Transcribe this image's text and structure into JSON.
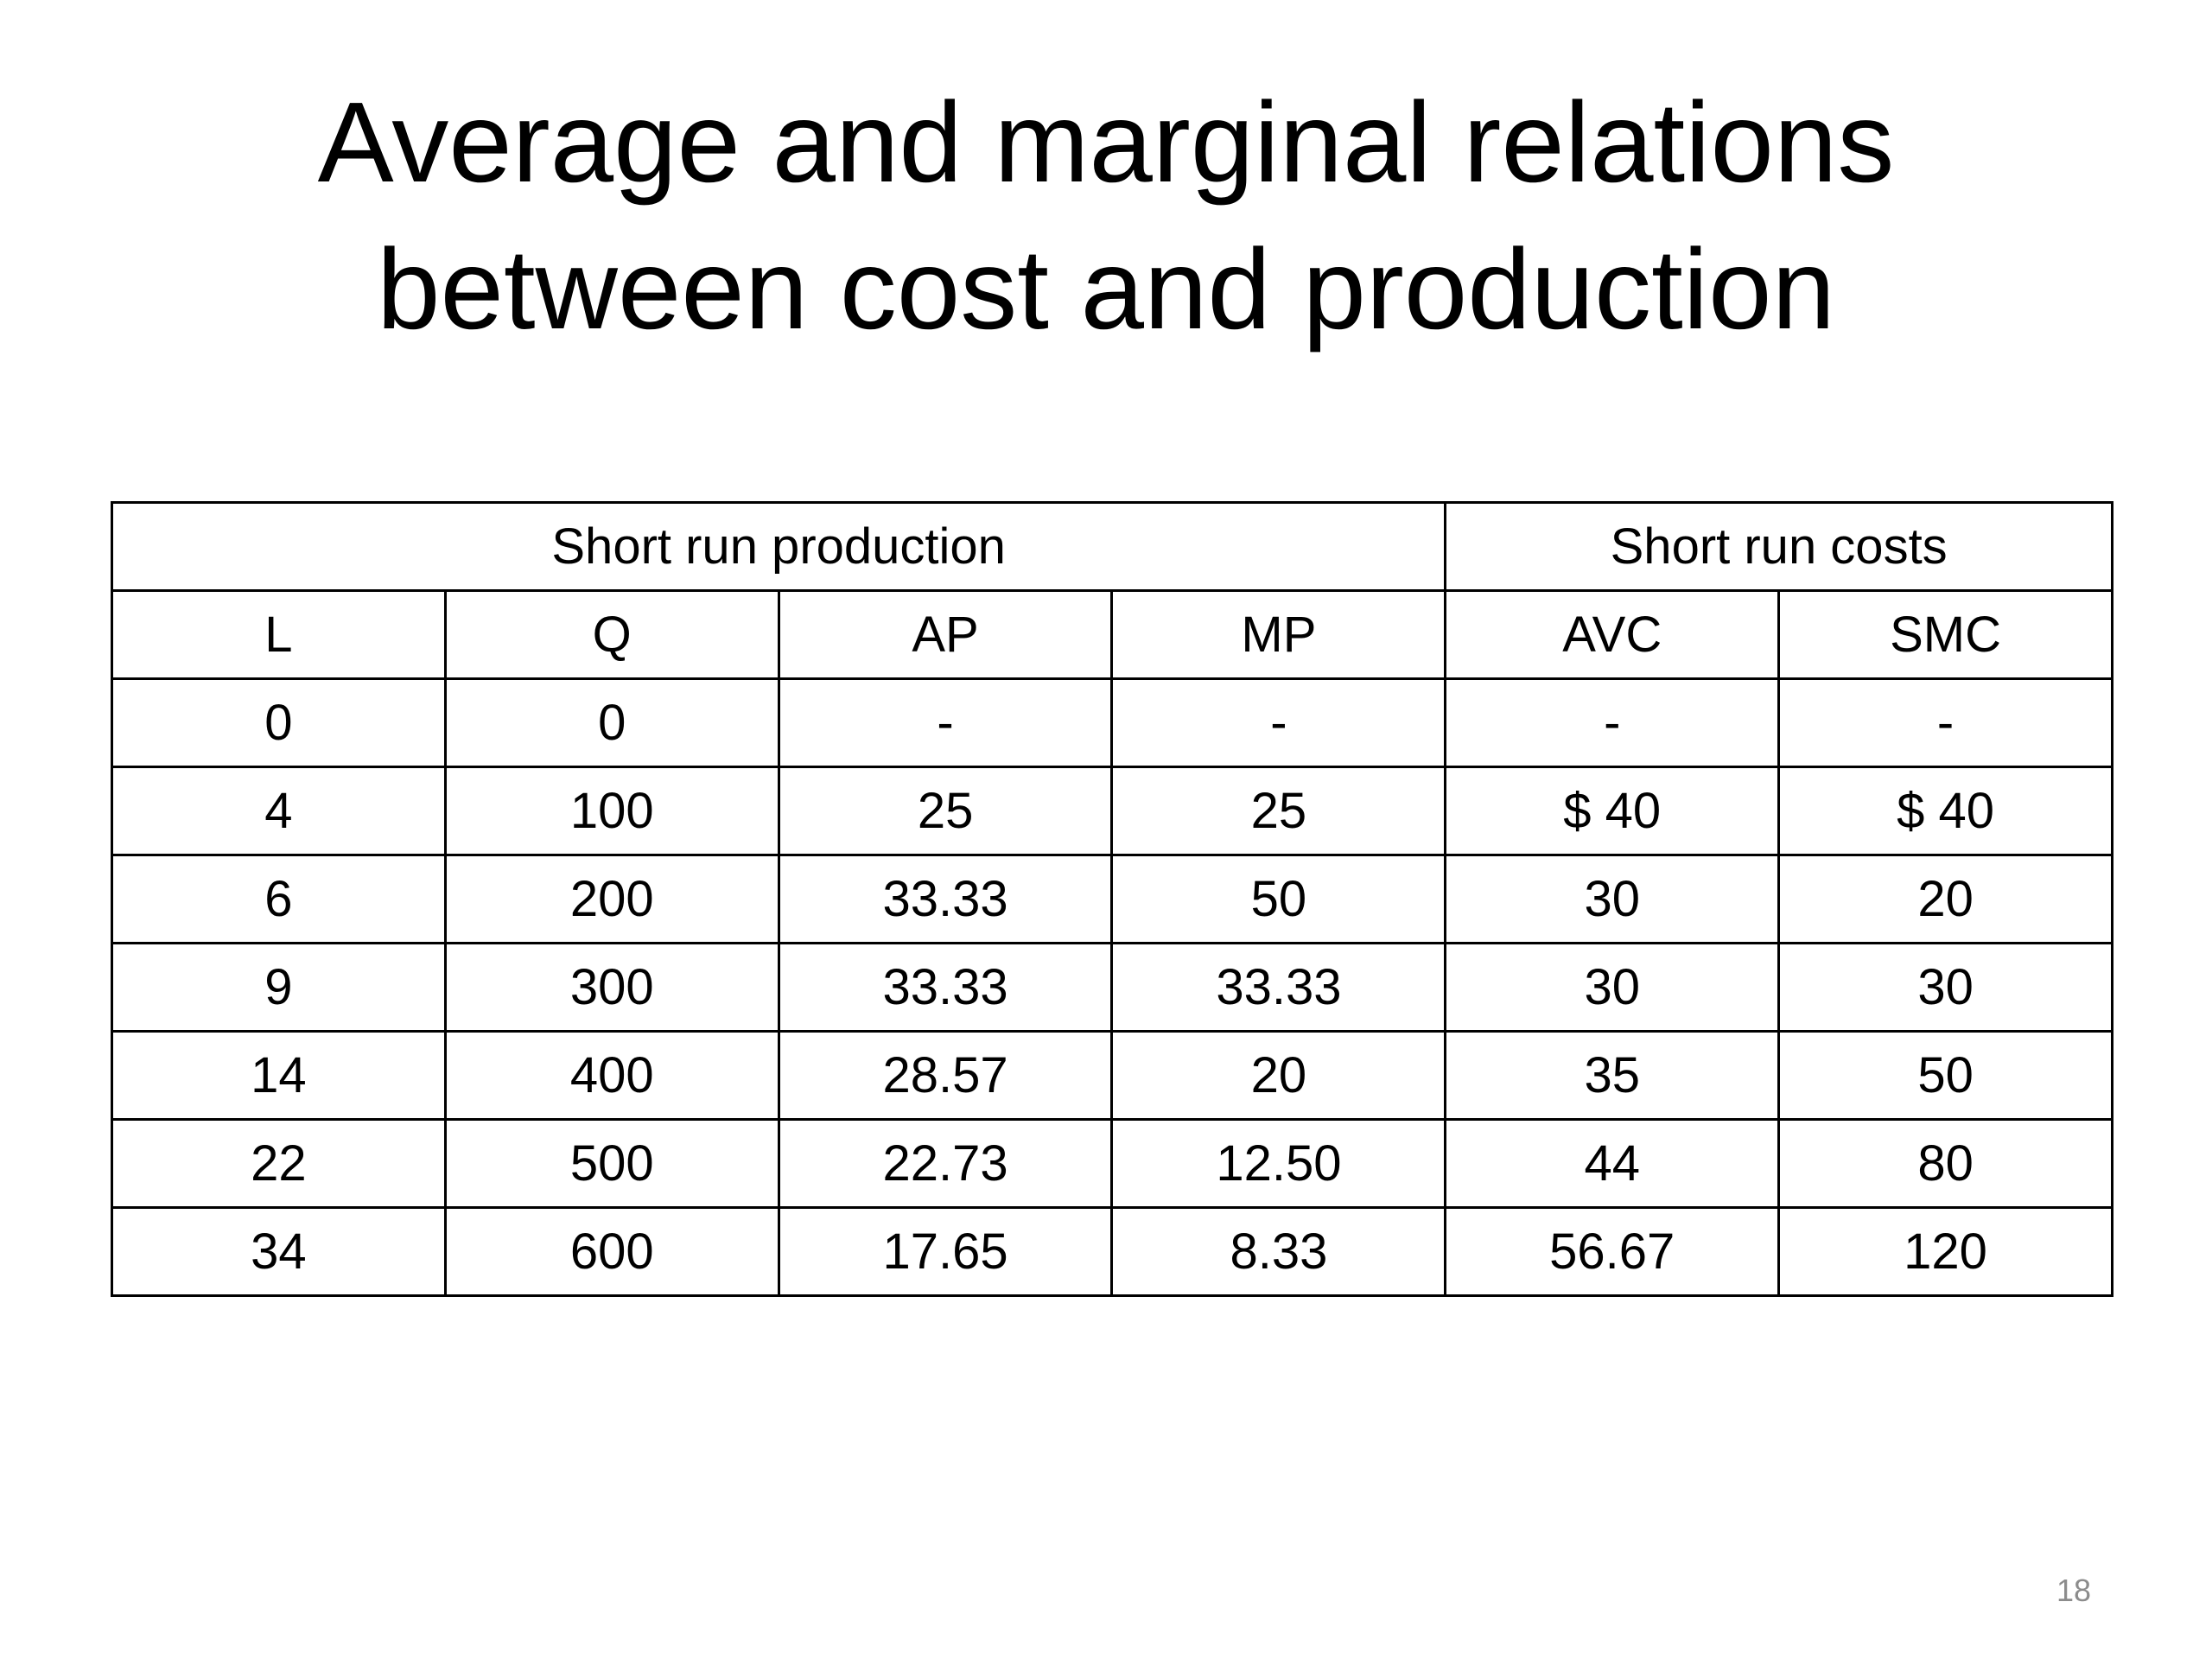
{
  "title": {
    "line1": "Average and marginal relations",
    "line2": "between cost and production"
  },
  "table": {
    "groups": {
      "production": "Short run production",
      "costs": "Short run costs"
    },
    "headers": [
      "L",
      "Q",
      "AP",
      "MP",
      "AVC",
      "SMC"
    ],
    "rows": [
      [
        "0",
        "0",
        "-",
        "-",
        "-",
        "-"
      ],
      [
        "4",
        "100",
        "25",
        "25",
        "$ 40",
        "$ 40"
      ],
      [
        "6",
        "200",
        "33.33",
        "50",
        "30",
        "20"
      ],
      [
        "9",
        "300",
        "33.33",
        "33.33",
        "30",
        "30"
      ],
      [
        "14",
        "400",
        "28.57",
        "20",
        "35",
        "50"
      ],
      [
        "22",
        "500",
        "22.73",
        "12.50",
        "44",
        "80"
      ],
      [
        "34",
        "600",
        "17.65",
        "8.33",
        "56.67",
        "120"
      ]
    ]
  },
  "page_number": "18"
}
